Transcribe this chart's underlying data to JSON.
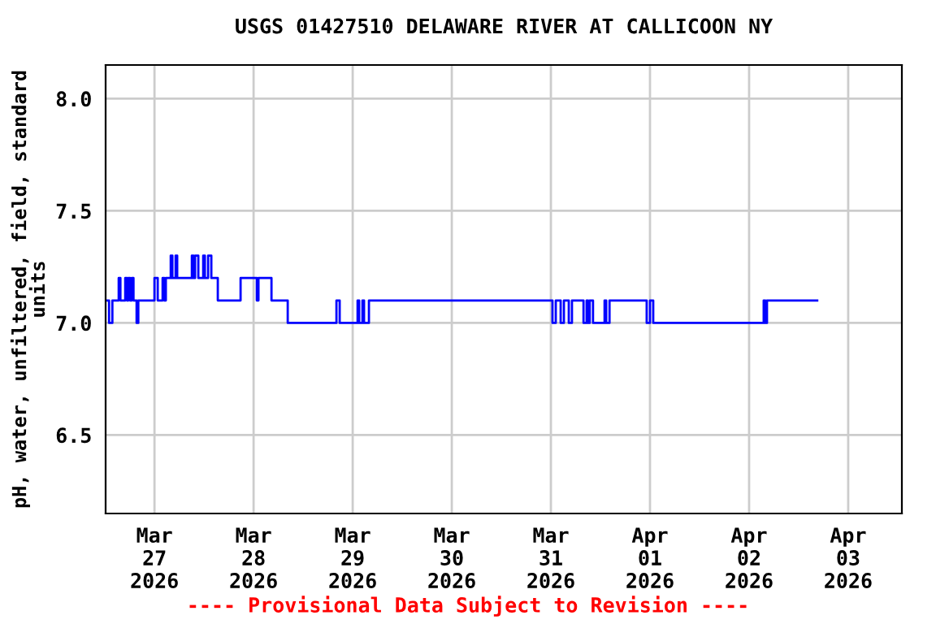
{
  "chart_data": {
    "type": "step",
    "title": "USGS 01427510 DELAWARE RIVER AT CALLICOON NY",
    "ylabel": "pH, water, unfiltered, field, standard\nunits",
    "annotations": [
      "---- Provisional Data Subject to Revision ----"
    ],
    "xlim": [
      "2026-03-26T12:10",
      "2026-04-03T13:00"
    ],
    "xticks": [
      {
        "value": "2026-03-27",
        "label": "Mar\n27\n2026"
      },
      {
        "value": "2026-03-28",
        "label": "Mar\n28\n2026"
      },
      {
        "value": "2026-03-29",
        "label": "Mar\n29\n2026"
      },
      {
        "value": "2026-03-30",
        "label": "Mar\n30\n2026"
      },
      {
        "value": "2026-03-31",
        "label": "Mar\n31\n2026"
      },
      {
        "value": "2026-04-01",
        "label": "Apr\n01\n2026"
      },
      {
        "value": "2026-04-02",
        "label": "Apr\n02\n2026"
      },
      {
        "value": "2026-04-03",
        "label": "Apr\n03\n2026"
      }
    ],
    "ylim": [
      6.15,
      8.15
    ],
    "yticks": [
      {
        "value": 6.5,
        "label": "6.5"
      },
      {
        "value": 7.0,
        "label": "7.0"
      },
      {
        "value": 7.5,
        "label": "7.5"
      },
      {
        "value": 8.0,
        "label": "8.0"
      }
    ],
    "grid": true,
    "x": [
      "2026-03-26T12:12",
      "2026-03-26T13:00",
      "2026-03-26T13:48",
      "2026-03-26T15:20",
      "2026-03-26T15:45",
      "2026-03-26T16:55",
      "2026-03-26T17:20",
      "2026-03-26T17:40",
      "2026-03-26T18:05",
      "2026-03-26T18:30",
      "2026-03-26T18:55",
      "2026-03-26T19:40",
      "2026-03-26T20:05",
      "2026-03-27T00:00",
      "2026-03-27T00:47",
      "2026-03-27T01:58",
      "2026-03-27T02:22",
      "2026-03-27T02:45",
      "2026-03-27T03:56",
      "2026-03-27T04:20",
      "2026-03-27T05:07",
      "2026-03-27T05:30",
      "2026-03-27T09:03",
      "2026-03-27T09:26",
      "2026-03-27T09:50",
      "2026-03-27T10:37",
      "2026-03-27T11:48",
      "2026-03-27T12:12",
      "2026-03-27T12:59",
      "2026-03-27T13:46",
      "2026-03-27T15:20",
      "2026-03-27T20:51",
      "2026-03-28T00:47",
      "2026-03-28T01:11",
      "2026-03-28T04:20",
      "2026-03-28T08:16",
      "2026-03-28T20:04",
      "2026-03-28T20:51",
      "2026-03-29T01:11",
      "2026-03-29T01:34",
      "2026-03-29T02:22",
      "2026-03-29T02:45",
      "2026-03-29T03:56",
      "2026-03-31T00:23",
      "2026-03-31T01:11",
      "2026-03-31T02:22",
      "2026-03-31T03:09",
      "2026-03-31T04:20",
      "2026-03-31T05:06",
      "2026-03-31T07:54",
      "2026-03-31T08:39",
      "2026-03-31T09:00",
      "2026-03-31T09:24",
      "2026-03-31T10:12",
      "2026-03-31T13:00",
      "2026-03-31T13:24",
      "2026-03-31T14:12",
      "2026-03-31T23:12",
      "2026-04-01T00:00",
      "2026-04-01T00:47",
      "2026-04-02T03:32",
      "2026-04-02T03:56",
      "2026-04-02T04:20",
      "2026-04-02T16:30"
    ],
    "series": [
      {
        "color": "#0000ff",
        "values": [
          7.1,
          7.0,
          7.1,
          7.2,
          7.1,
          7.2,
          7.1,
          7.2,
          7.1,
          7.2,
          7.1,
          7.0,
          7.1,
          7.2,
          7.1,
          7.2,
          7.1,
          7.2,
          7.3,
          7.2,
          7.3,
          7.2,
          7.3,
          7.2,
          7.3,
          7.2,
          7.3,
          7.2,
          7.3,
          7.2,
          7.1,
          7.2,
          7.1,
          7.2,
          7.1,
          7.0,
          7.1,
          7.0,
          7.1,
          7.0,
          7.1,
          7.0,
          7.1,
          7.0,
          7.1,
          7.0,
          7.1,
          7.0,
          7.1,
          7.0,
          7.1,
          7.0,
          7.1,
          7.0,
          7.1,
          7.0,
          7.1,
          7.0,
          7.1,
          7.0,
          7.1,
          7.0,
          7.1,
          7.1
        ]
      }
    ]
  }
}
